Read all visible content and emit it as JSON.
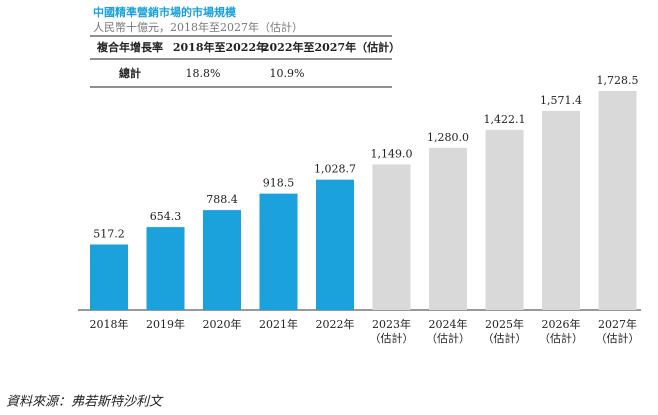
{
  "chart_data": {
    "type": "bar",
    "title": "中國精準營銷市場的市場規模",
    "subtitle": "人民幣十億元，2018年至2027年（估計）",
    "cagr_table": {
      "header": [
        "複合年增長率",
        "2018年至2022年",
        "2022年至2027年（估計）"
      ],
      "rows": [
        [
          "總計",
          "18.8%",
          "10.9%"
        ]
      ]
    },
    "categories": [
      [
        "2018年"
      ],
      [
        "2019年"
      ],
      [
        "2020年"
      ],
      [
        "2021年"
      ],
      [
        "2022年"
      ],
      [
        "2023年",
        "（估計）"
      ],
      [
        "2024年",
        "（估計）"
      ],
      [
        "2025年",
        "（估計）"
      ],
      [
        "2026年",
        "（估計）"
      ],
      [
        "2027年",
        "（估計）"
      ]
    ],
    "values": [
      517.2,
      654.3,
      788.4,
      918.5,
      1028.7,
      1149.0,
      1280.0,
      1422.1,
      1571.4,
      1728.5
    ],
    "value_labels": [
      "517.2",
      "654.3",
      "788.4",
      "918.5",
      "1,028.7",
      "1,149.0",
      "1,280.0",
      "1,422.1",
      "1,571.4",
      "1,728.5"
    ],
    "colors": [
      "#1ba1dc",
      "#1ba1dc",
      "#1ba1dc",
      "#1ba1dc",
      "#1ba1dc",
      "#d9d9d9",
      "#d9d9d9",
      "#d9d9d9",
      "#d9d9d9",
      "#d9d9d9"
    ],
    "source": "資料來源：弗若斯特沙利文"
  }
}
